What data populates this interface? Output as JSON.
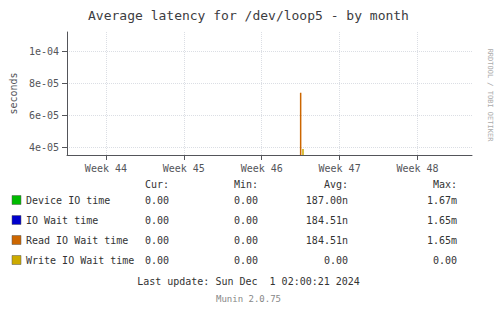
{
  "chart_data": {
    "type": "line",
    "title": "Average latency for /dev/loop5 - by month",
    "y_label": "seconds",
    "xlim": [
      43.5,
      48.7
    ],
    "xticks": [
      {
        "value": 44,
        "label": "Week 44"
      },
      {
        "value": 45,
        "label": "Week 45"
      },
      {
        "value": 46,
        "label": "Week 46"
      },
      {
        "value": 47,
        "label": "Week 47"
      },
      {
        "value": 48,
        "label": "Week 48"
      }
    ],
    "ylim": [
      3.5e-05,
      0.000112
    ],
    "yticks": [
      {
        "value": 4e-05,
        "label": "4e-05"
      },
      {
        "value": 6e-05,
        "label": "6e-05"
      },
      {
        "value": 8e-05,
        "label": "8e-05"
      },
      {
        "value": 0.0001,
        "label": "1e-04"
      }
    ],
    "grid": true,
    "stat_headers": [
      "Cur:",
      "Min:",
      "Avg:",
      "Max:"
    ],
    "series": [
      {
        "name": "Device IO time",
        "color": "#00bb00",
        "x": [],
        "values": [],
        "cur": "0.00",
        "min": "0.00",
        "avg": "187.00n",
        "max": "1.67m"
      },
      {
        "name": "IO Wait time",
        "color": "#0000cc",
        "x": [],
        "values": [],
        "cur": "0.00",
        "min": "0.00",
        "avg": "184.51n",
        "max": "1.65m"
      },
      {
        "name": "Read IO Wait time",
        "color": "#cc6600",
        "x": [
          46.5,
          46.5
        ],
        "values": [
          3.5e-05,
          7.4e-05
        ],
        "cur": "0.00",
        "min": "0.00",
        "avg": "184.51n",
        "max": "1.65m"
      },
      {
        "name": "Write IO Wait time",
        "color": "#ccaa00",
        "x": [
          46.53,
          46.53
        ],
        "values": [
          3.5e-05,
          3.87e-05
        ],
        "cur": "0.00",
        "min": "0.00",
        "avg": "0.00",
        "max": "0.00"
      }
    ],
    "annotations": [
      "RRDTOOL / TOBI OETIKER",
      "Last update: Sun Dec  1 02:00:21 2024",
      "Munin 2.0.75"
    ]
  }
}
